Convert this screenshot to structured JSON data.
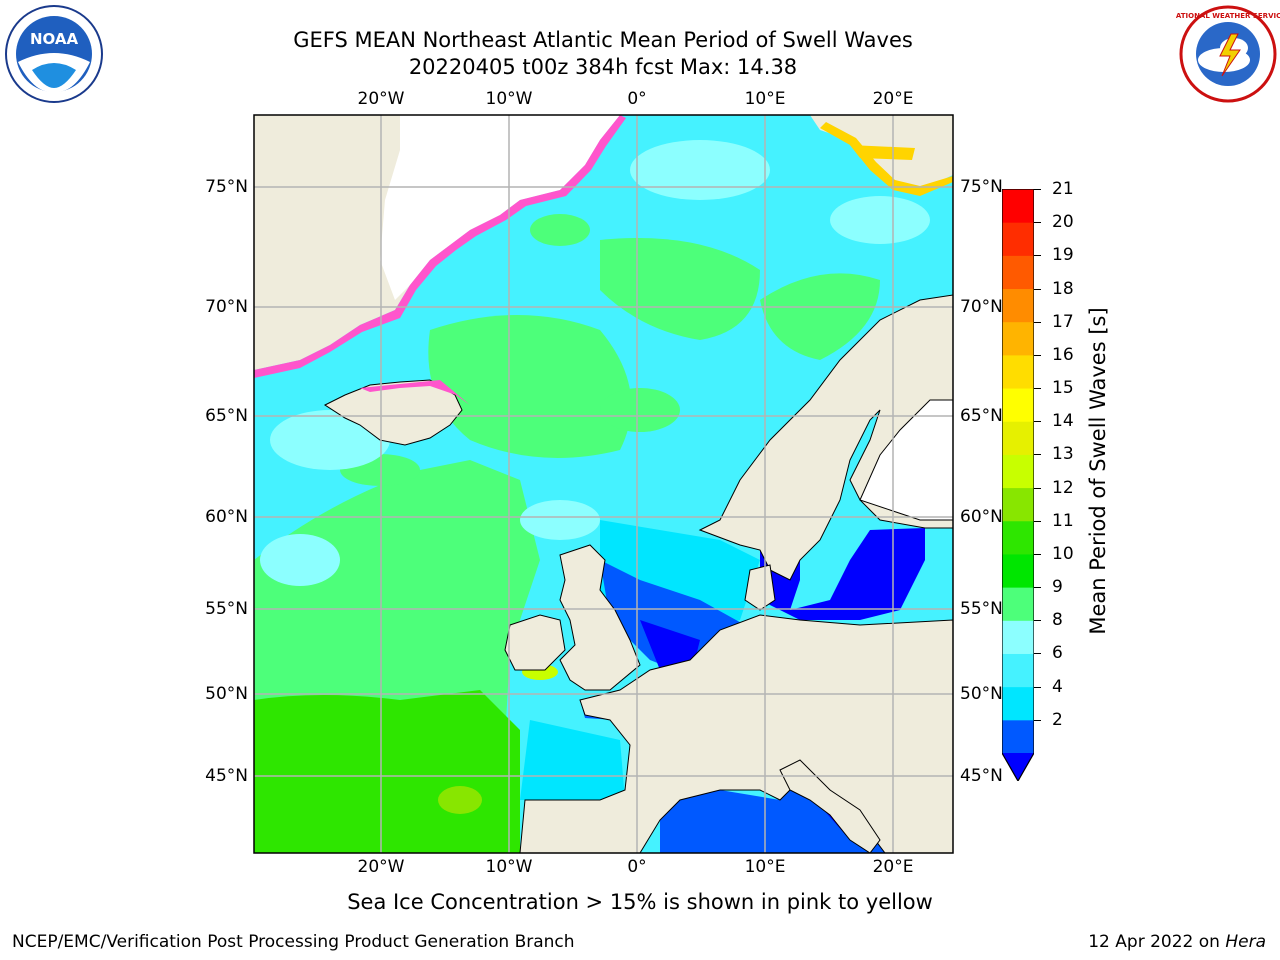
{
  "title": {
    "line1": "GEFS MEAN Northeast Atlantic Mean Period of Swell Waves",
    "line2": "20220405 t00z 384h fcst   Max: 14.38"
  },
  "logos": {
    "left": {
      "icon": "noaa-logo",
      "text": "NOAA"
    },
    "right": {
      "icon": "nws-logo",
      "text": "NATIONAL WEATHER SERVICE"
    }
  },
  "map": {
    "lon_labels": [
      "20°W",
      "10°W",
      "0°",
      "10°E",
      "20°E"
    ],
    "lat_labels": [
      "75°N",
      "70°N",
      "65°N",
      "60°N",
      "55°N",
      "50°N",
      "45°N"
    ],
    "land_color": "#efecdc",
    "ice_color": "#ffffff",
    "grid_color": "#b4b4b4"
  },
  "colorbar": {
    "label": "Mean Period of Swell Waves [s]",
    "ticks": [
      "21",
      "20",
      "19",
      "18",
      "17",
      "16",
      "15",
      "14",
      "13",
      "12",
      "11",
      "10",
      "9",
      "8",
      "6",
      "4",
      "2"
    ],
    "colors_bottom_to_top": [
      "#0059ff",
      "#00e6ff",
      "#45f2ff",
      "#8cffff",
      "#4dff7a",
      "#00e600",
      "#2ee600",
      "#88e600",
      "#c8ff00",
      "#e6f000",
      "#ffff00",
      "#ffdd00",
      "#ffb400",
      "#ff8c00",
      "#ff5a00",
      "#ff2d00",
      "#ff0000"
    ],
    "extend_color": "#0000ff"
  },
  "caption": "Sea Ice Concentration > 15% is shown in pink to yellow",
  "footer": {
    "left": "NCEP/EMC/Verification Post Processing Product Generation Branch",
    "right_date": "12 Apr 2022 on ",
    "right_host": "Hera"
  }
}
